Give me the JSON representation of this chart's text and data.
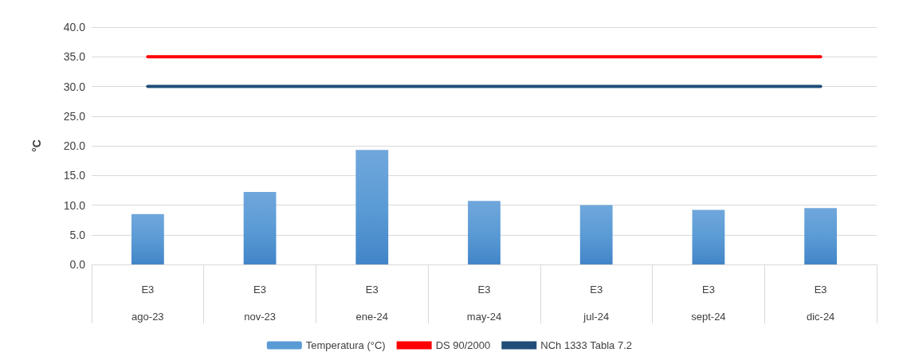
{
  "chart_data": {
    "type": "bar",
    "ylabel": "°C",
    "categories": [
      "E3\nago-23",
      "E3\nnov-23",
      "E3\nene-24",
      "E3\nmay-24",
      "E3\njul-24",
      "E3\nsept-24",
      "E3\ndic-24"
    ],
    "series": [
      {
        "name": "Temperatura (°C)",
        "color": "#5b9bd5",
        "values": [
          8.5,
          12.2,
          19.3,
          10.7,
          10.0,
          9.2,
          9.5
        ]
      },
      {
        "name": "DS 90/2000",
        "type": "line",
        "color": "#ff0000",
        "values": [
          35,
          35,
          35,
          35,
          35,
          35,
          35
        ]
      },
      {
        "name": "NCh 1333 Tabla 7.2",
        "type": "line",
        "color": "#1f4e79",
        "values": [
          30,
          30,
          30,
          30,
          30,
          30,
          30
        ]
      }
    ],
    "ylim": [
      0,
      40
    ],
    "yticks": [
      {
        "value": 0,
        "label": "0.0"
      },
      {
        "value": 5,
        "label": "5.0"
      },
      {
        "value": 10,
        "label": "10.0"
      },
      {
        "value": 15,
        "label": "15.0"
      },
      {
        "value": 20,
        "label": "20.0"
      },
      {
        "value": 25,
        "label": "25.0"
      },
      {
        "value": 30,
        "label": "30.0"
      },
      {
        "value": 35,
        "label": "35.0"
      },
      {
        "value": 40,
        "label": "40.0"
      }
    ],
    "grid": "y",
    "legend": "bottom",
    "marker": "none",
    "line_style": "solid"
  }
}
